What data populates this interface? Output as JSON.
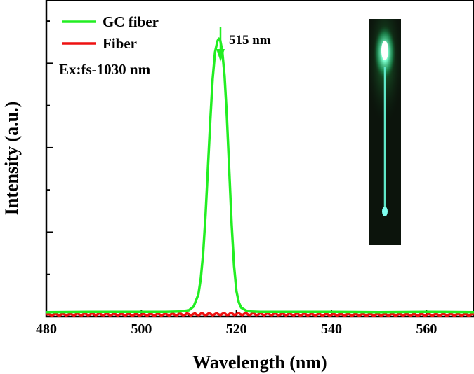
{
  "chart_data": {
    "type": "line",
    "title": "",
    "xlabel": "Wavelength (nm)",
    "ylabel": "Intensity (a.u.)",
    "xlim": [
      480,
      570
    ],
    "ylim": [
      0,
      100
    ],
    "x_ticks": [
      480,
      500,
      520,
      540,
      560
    ],
    "x_tick_labels": [
      "480",
      "500",
      "520",
      "540",
      "560"
    ],
    "y_tick_labels_shown": false,
    "grid": false,
    "legend_position": "top-left",
    "series": [
      {
        "name": "GC fiber",
        "color": "#22ee22",
        "x": [
          480,
          490,
          500,
          505,
          508,
          510,
          511,
          512,
          512.5,
          513,
          513.5,
          514,
          514.5,
          515,
          515.5,
          516,
          516.3,
          516.6,
          517,
          517.5,
          518,
          518.5,
          519,
          519.5,
          520,
          520.5,
          521,
          522,
          523,
          525,
          530,
          540,
          550,
          560,
          570
        ],
        "values": [
          1.4,
          1.5,
          1.5,
          1.5,
          1.6,
          2.0,
          3.2,
          7.0,
          12.0,
          20.0,
          32.0,
          47.0,
          62.0,
          75.0,
          83.5,
          87.0,
          87.8,
          87.2,
          84.0,
          76.0,
          63.0,
          46.0,
          29.0,
          16.0,
          8.0,
          4.5,
          2.8,
          1.9,
          1.6,
          1.5,
          1.5,
          1.5,
          1.4,
          1.5,
          1.4
        ]
      },
      {
        "name": "Fiber",
        "color": "#ee1111",
        "x": [
          480,
          490,
          500,
          510,
          520,
          530,
          540,
          550,
          560,
          570
        ],
        "values": [
          0.6,
          0.7,
          0.6,
          0.7,
          0.8,
          0.7,
          0.6,
          0.6,
          0.6,
          0.6
        ]
      }
    ],
    "annotations": [
      {
        "text": "515 nm",
        "x": 516,
        "y": 99,
        "arrow": true
      },
      {
        "text": "Ex:fs-1030 nm",
        "position": "top-left"
      }
    ]
  }
}
